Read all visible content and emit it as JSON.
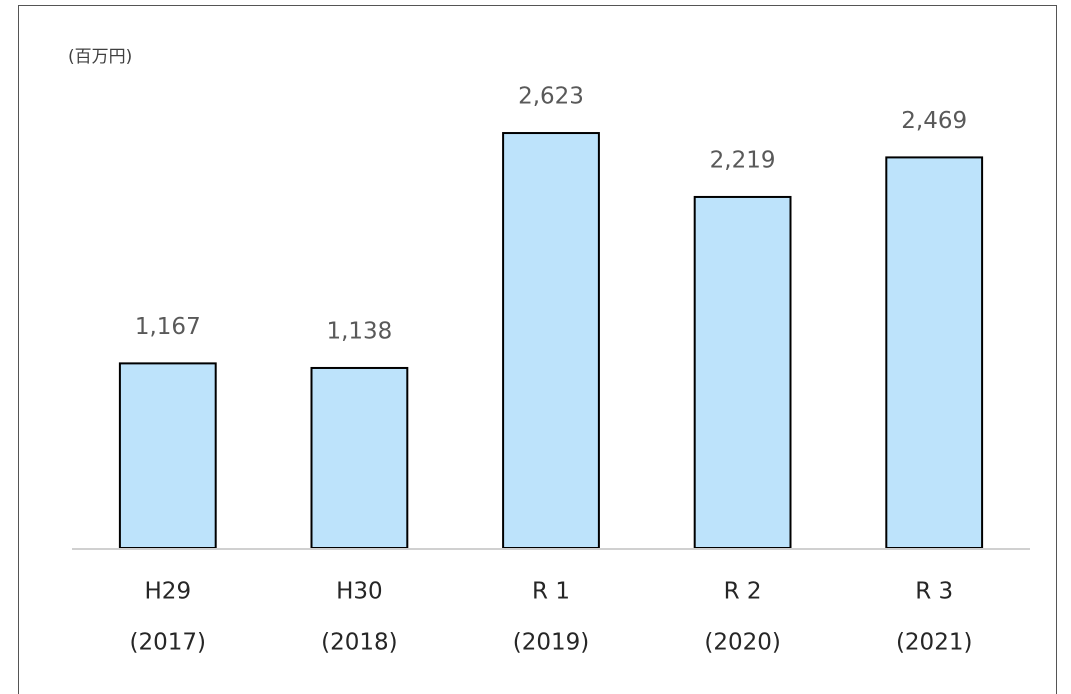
{
  "chart_data": {
    "type": "bar",
    "unit": "(百万円)",
    "categories": [
      [
        "H29",
        "(2017)"
      ],
      [
        "H30",
        "(2018)"
      ],
      [
        "R 1",
        "(2019)"
      ],
      [
        "R 2",
        "(2020)"
      ],
      [
        "R 3",
        "(2021)"
      ]
    ],
    "values": [
      1167,
      1138,
      2623,
      2219,
      2469
    ],
    "value_labels": [
      "1,167",
      "1,138",
      "2,623",
      "2,219",
      "2,469"
    ],
    "color": "#bde3fb",
    "ylim": [
      0,
      3000
    ]
  }
}
